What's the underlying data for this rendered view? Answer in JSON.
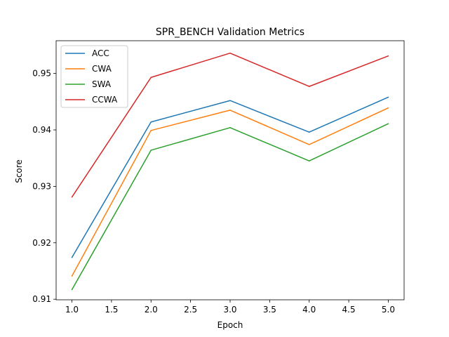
{
  "chart_data": {
    "type": "line",
    "title": "SPR_BENCH Validation Metrics",
    "xlabel": "Epoch",
    "ylabel": "Score",
    "x": [
      1,
      2,
      3,
      4,
      5
    ],
    "xlim": [
      0.8,
      5.2
    ],
    "ylim": [
      0.9099,
      0.9558
    ],
    "xticks": [
      1.0,
      1.5,
      2.0,
      2.5,
      3.0,
      3.5,
      4.0,
      4.5,
      5.0
    ],
    "xtick_labels": [
      "1.0",
      "1.5",
      "2.0",
      "2.5",
      "3.0",
      "3.5",
      "4.0",
      "4.5",
      "5.0"
    ],
    "yticks": [
      0.91,
      0.92,
      0.93,
      0.94,
      0.95
    ],
    "ytick_labels": [
      "0.91",
      "0.92",
      "0.93",
      "0.94",
      "0.95"
    ],
    "grid": false,
    "legend_position": "top-left",
    "series": [
      {
        "name": "ACC",
        "color": "#1f77b4",
        "values": [
          0.9174,
          0.9414,
          0.9452,
          0.9396,
          0.9458
        ]
      },
      {
        "name": "CWA",
        "color": "#ff7f0e",
        "values": [
          0.9141,
          0.9399,
          0.9435,
          0.9374,
          0.9439
        ]
      },
      {
        "name": "SWA",
        "color": "#2ca02c",
        "values": [
          0.9117,
          0.9364,
          0.9404,
          0.9345,
          0.9411
        ]
      },
      {
        "name": "CCWA",
        "color": "#d62728",
        "values": [
          0.9281,
          0.9493,
          0.9536,
          0.9477,
          0.9531
        ]
      }
    ]
  }
}
